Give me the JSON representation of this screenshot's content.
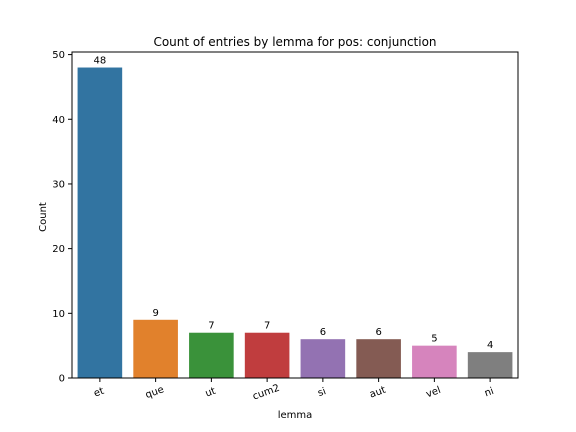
{
  "chart_data": {
    "type": "bar",
    "title": "Count of entries by lemma for pos: conjunction",
    "xlabel": "lemma",
    "ylabel": "Count",
    "categories": [
      "et",
      "que",
      "ut",
      "cum2",
      "si",
      "aut",
      "vel",
      "ni"
    ],
    "values": [
      48,
      9,
      7,
      7,
      6,
      6,
      5,
      4
    ],
    "colors": [
      "#3274a1",
      "#e1812c",
      "#3a923a",
      "#c03d3e",
      "#9372b2",
      "#845b53",
      "#d684bd",
      "#7f7f7f"
    ],
    "ylim": [
      0,
      50.4
    ],
    "yticks": [
      0,
      10,
      20,
      30,
      40,
      50
    ],
    "grid": false,
    "legend": "none"
  }
}
